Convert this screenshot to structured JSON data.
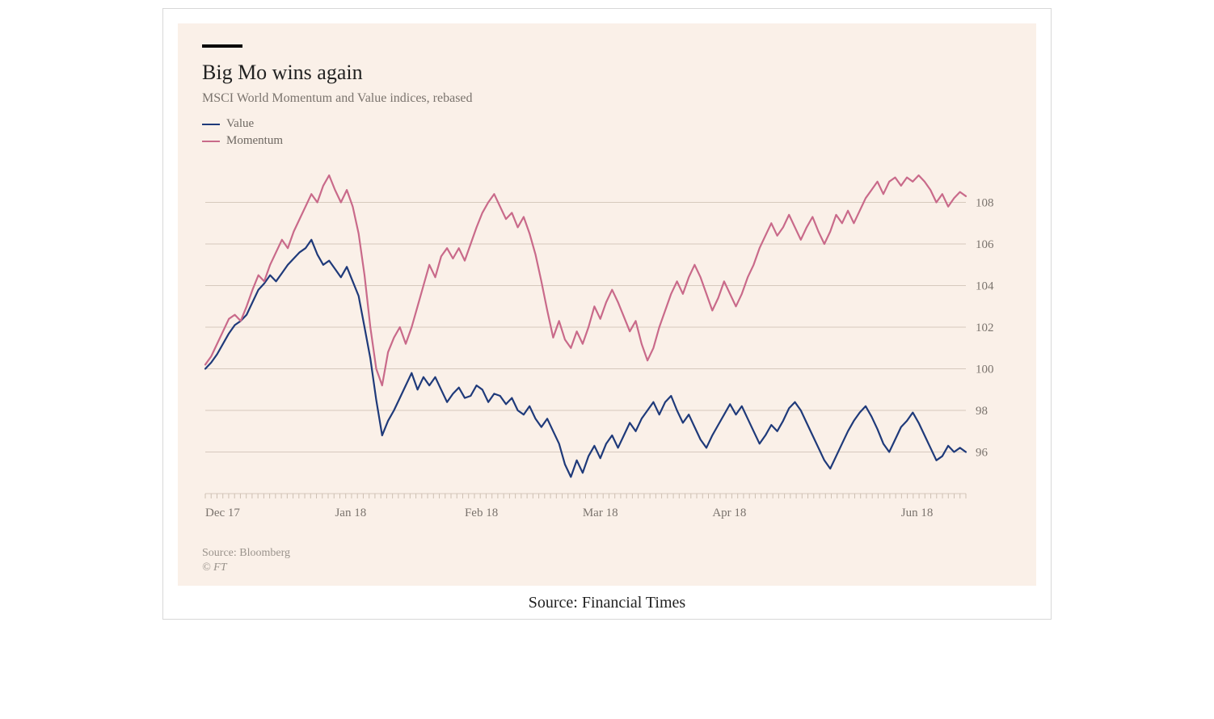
{
  "card": {
    "caption": "Source: Financial Times"
  },
  "chart": {
    "type": "line",
    "background_color": "#faf0e8",
    "top_rule_color": "#000000",
    "title": "Big Mo wins again",
    "title_fontsize": 26,
    "title_color": "#222222",
    "subtitle": "MSCI World Momentum and Value indices, rebased",
    "subtitle_fontsize": 16,
    "subtitle_color": "#7a736d",
    "source": "Source: Bloomberg",
    "copyright": "© FT",
    "footer_color": "#9a938c",
    "grid_color": "#d6c9bd",
    "line_width": 2.2,
    "y_axis": {
      "min": 94,
      "max": 110,
      "ticks": [
        96,
        98,
        100,
        102,
        104,
        106,
        108
      ],
      "label_color": "#7a736d",
      "label_fontsize": 15,
      "side": "right"
    },
    "x_axis": {
      "n": 130,
      "labels": [
        {
          "pos": 0,
          "text": "Dec 17"
        },
        {
          "pos": 22,
          "text": "Jan 18"
        },
        {
          "pos": 44,
          "text": "Feb 18"
        },
        {
          "pos": 64,
          "text": "Mar 18"
        },
        {
          "pos": 86,
          "text": "Apr 18"
        },
        {
          "pos": 118,
          "text": "Jun 18"
        }
      ],
      "label_color": "#7a736d",
      "label_fontsize": 15,
      "minor_tick_count": 130,
      "minor_tick_color": "#cdbfb2"
    },
    "series": [
      {
        "name": "Value",
        "color": "#1f3a7a",
        "data": [
          100.0,
          100.3,
          100.7,
          101.2,
          101.7,
          102.1,
          102.3,
          102.6,
          103.2,
          103.8,
          104.1,
          104.5,
          104.2,
          104.6,
          105.0,
          105.3,
          105.6,
          105.8,
          106.2,
          105.5,
          105.0,
          105.2,
          104.8,
          104.4,
          104.9,
          104.2,
          103.5,
          102.0,
          100.5,
          98.5,
          96.8,
          97.5,
          98.0,
          98.6,
          99.2,
          99.8,
          99.0,
          99.6,
          99.2,
          99.6,
          99.0,
          98.4,
          98.8,
          99.1,
          98.6,
          98.7,
          99.2,
          99.0,
          98.4,
          98.8,
          98.7,
          98.3,
          98.6,
          98.0,
          97.8,
          98.2,
          97.6,
          97.2,
          97.6,
          97.0,
          96.4,
          95.4,
          94.8,
          95.6,
          95.0,
          95.8,
          96.3,
          95.7,
          96.4,
          96.8,
          96.2,
          96.8,
          97.4,
          97.0,
          97.6,
          98.0,
          98.4,
          97.8,
          98.4,
          98.7,
          98.0,
          97.4,
          97.8,
          97.2,
          96.6,
          96.2,
          96.8,
          97.3,
          97.8,
          98.3,
          97.8,
          98.2,
          97.6,
          97.0,
          96.4,
          96.8,
          97.3,
          97.0,
          97.5,
          98.1,
          98.4,
          98.0,
          97.4,
          96.8,
          96.2,
          95.6,
          95.2,
          95.8,
          96.4,
          97.0,
          97.5,
          97.9,
          98.2,
          97.7,
          97.1,
          96.4,
          96.0,
          96.6,
          97.2,
          97.5,
          97.9,
          97.4,
          96.8,
          96.2,
          95.6,
          95.8,
          96.3,
          96.0,
          96.2,
          96.0
        ]
      },
      {
        "name": "Momentum",
        "color": "#c96a8a",
        "data": [
          100.2,
          100.6,
          101.2,
          101.8,
          102.4,
          102.6,
          102.3,
          103.0,
          103.8,
          104.5,
          104.2,
          105.0,
          105.6,
          106.2,
          105.8,
          106.6,
          107.2,
          107.8,
          108.4,
          108.0,
          108.8,
          109.3,
          108.6,
          108.0,
          108.6,
          107.8,
          106.5,
          104.5,
          102.0,
          100.0,
          99.2,
          100.8,
          101.5,
          102.0,
          101.2,
          102.0,
          103.0,
          104.0,
          105.0,
          104.4,
          105.4,
          105.8,
          105.3,
          105.8,
          105.2,
          106.0,
          106.8,
          107.5,
          108.0,
          108.4,
          107.8,
          107.2,
          107.5,
          106.8,
          107.3,
          106.5,
          105.5,
          104.2,
          102.8,
          101.5,
          102.3,
          101.4,
          101.0,
          101.8,
          101.2,
          102.0,
          103.0,
          102.4,
          103.2,
          103.8,
          103.2,
          102.5,
          101.8,
          102.3,
          101.2,
          100.4,
          101.0,
          102.0,
          102.8,
          103.6,
          104.2,
          103.6,
          104.4,
          105.0,
          104.4,
          103.6,
          102.8,
          103.4,
          104.2,
          103.6,
          103.0,
          103.6,
          104.4,
          105.0,
          105.8,
          106.4,
          107.0,
          106.4,
          106.8,
          107.4,
          106.8,
          106.2,
          106.8,
          107.3,
          106.6,
          106.0,
          106.6,
          107.4,
          107.0,
          107.6,
          107.0,
          107.6,
          108.2,
          108.6,
          109.0,
          108.4,
          109.0,
          109.2,
          108.8,
          109.2,
          109.0,
          109.3,
          109.0,
          108.6,
          108.0,
          108.4,
          107.8,
          108.2,
          108.5,
          108.3
        ]
      }
    ]
  }
}
